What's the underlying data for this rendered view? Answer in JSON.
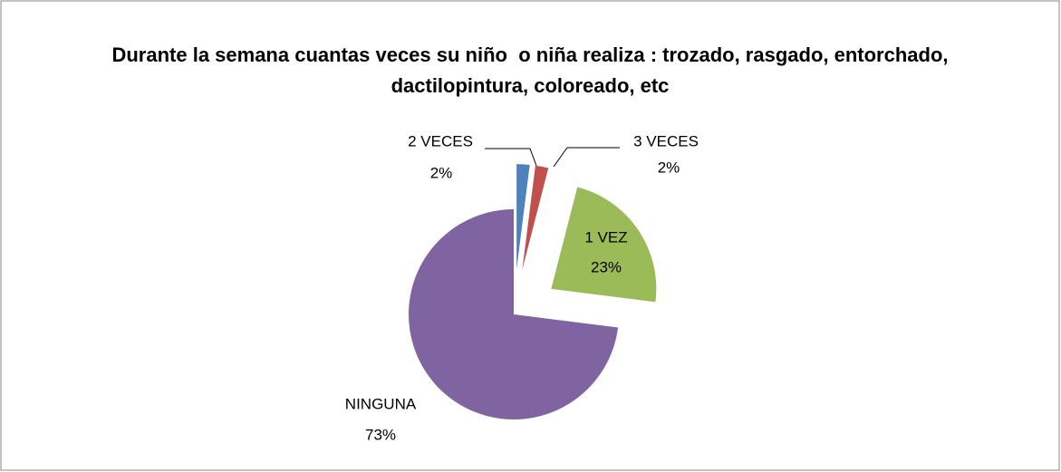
{
  "chart_data": {
    "type": "pie",
    "title": "Durante la semana cuantas veces su niño  o niña realiza : trozado, rasgado, entorchado, dactilopintura, coloreado, etc",
    "categories": [
      "2 VECES",
      "3 VECES",
      "1 VEZ",
      "NINGUNA"
    ],
    "values": [
      2,
      2,
      23,
      73
    ],
    "value_labels": [
      "2%",
      "2%",
      "23%",
      "73%"
    ],
    "colors": [
      "#4f81bd",
      "#c0504d",
      "#9bbb59",
      "#8064a2"
    ]
  }
}
